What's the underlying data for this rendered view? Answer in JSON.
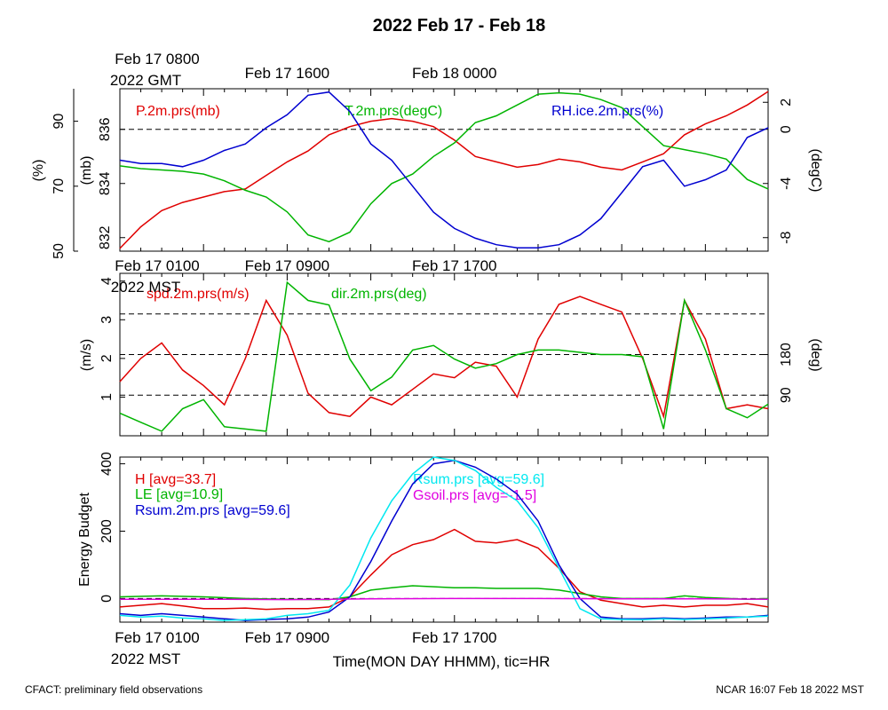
{
  "page": {
    "title": "2022 Feb 17 - Feb 18",
    "footer_left": "CFACT: preliminary field observations",
    "footer_right": "NCAR 16:07 Feb 18 2022 MST",
    "x_axis_title": "Time(MON DAY HHMM), tic=HR"
  },
  "colors": {
    "red": "#e00000",
    "green": "#00b400",
    "blue": "#0000d0",
    "cyan": "#00e8f0",
    "magenta": "#e000e0",
    "black": "#000000"
  },
  "chart_data": [
    {
      "type": "line",
      "name": "panel-state",
      "gmt_labels": [
        {
          "lines": [
            "Feb 17 0800",
            "2022 GMT"
          ],
          "hour": 0
        },
        {
          "lines": [
            "Feb 17 1600"
          ],
          "hour": 8
        },
        {
          "lines": [
            "Feb 18 0000"
          ],
          "hour": 16
        }
      ],
      "axes": {
        "rh": {
          "label": "(%)",
          "range": [
            50,
            100
          ],
          "ticks": [
            50,
            70,
            90
          ]
        },
        "p": {
          "label": "(mb)",
          "range": [
            831.5,
            837.5
          ],
          "ticks": [
            832,
            834,
            836
          ]
        },
        "t": {
          "label": "(degC)",
          "range": [
            -9,
            3
          ],
          "ticks": [
            -8,
            -4,
            0,
            2
          ]
        }
      },
      "series": [
        {
          "name": "P.2m.prs(mb)",
          "axis": "p",
          "color": "red",
          "x": [
            0,
            1,
            2,
            3,
            4,
            5,
            6,
            7,
            8,
            9,
            10,
            11,
            12,
            13,
            14,
            15,
            16,
            17,
            18,
            19,
            20,
            21,
            22,
            23,
            24,
            25,
            26,
            27,
            28,
            29,
            30,
            31
          ],
          "y": [
            831.6,
            832.4,
            833.0,
            833.3,
            833.5,
            833.7,
            833.8,
            834.3,
            834.8,
            835.2,
            835.8,
            836.1,
            836.3,
            836.4,
            836.3,
            836.1,
            835.6,
            835.0,
            834.8,
            834.6,
            834.7,
            834.9,
            834.8,
            834.6,
            834.5,
            834.8,
            835.1,
            835.8,
            836.2,
            836.5,
            836.9,
            837.4
          ]
        },
        {
          "name": "T.2m.prs(degC)",
          "axis": "t",
          "color": "green",
          "x": [
            0,
            1,
            2,
            3,
            4,
            5,
            6,
            7,
            8,
            9,
            10,
            11,
            12,
            13,
            14,
            15,
            16,
            17,
            18,
            19,
            20,
            21,
            22,
            23,
            24,
            25,
            26,
            27,
            28,
            29,
            30,
            31
          ],
          "y": [
            -2.7,
            -2.9,
            -3.0,
            -3.1,
            -3.3,
            -3.8,
            -4.5,
            -5.0,
            -6.1,
            -7.8,
            -8.3,
            -7.6,
            -5.5,
            -4.0,
            -3.3,
            -2.0,
            -1.0,
            0.5,
            1.0,
            1.8,
            2.6,
            2.7,
            2.6,
            2.2,
            1.6,
            0.2,
            -1.2,
            -1.5,
            -1.8,
            -2.2,
            -3.7,
            -4.4
          ]
        },
        {
          "name": "RH.ice.2m.prs(%)",
          "axis": "rh",
          "color": "blue",
          "x": [
            0,
            1,
            2,
            3,
            4,
            5,
            6,
            7,
            8,
            9,
            10,
            11,
            12,
            13,
            14,
            15,
            16,
            17,
            18,
            19,
            20,
            21,
            22,
            23,
            24,
            25,
            26,
            27,
            28,
            29,
            30,
            31
          ],
          "y": [
            78,
            77,
            77,
            76,
            78,
            81,
            83,
            88,
            92,
            98,
            99,
            93,
            83,
            78,
            70,
            62,
            57,
            54,
            52,
            51,
            51,
            52,
            55,
            60,
            68,
            76,
            78,
            70,
            72,
            75,
            85,
            88
          ]
        }
      ],
      "legend": [
        "P.2m.prs(mb)",
        "T.2m.prs(degC)",
        "RH.ice.2m.prs(%)"
      ],
      "reference_lines": [
        {
          "axis": "t",
          "value": 0
        }
      ]
    },
    {
      "type": "line",
      "name": "panel-wind",
      "mst_labels": [
        {
          "lines": [
            "Feb 17 0100",
            "2022 MST"
          ],
          "hour": 0
        },
        {
          "lines": [
            "Feb 17 0900"
          ],
          "hour": 8
        },
        {
          "lines": [
            "Feb 17 1700"
          ],
          "hour": 16
        }
      ],
      "axes": {
        "spd": {
          "label": "(m/s)",
          "range": [
            0,
            4.2
          ],
          "ticks": [
            1,
            2,
            3,
            4
          ]
        },
        "dir": {
          "label": "(deg)",
          "range": [
            0,
            360
          ],
          "ticks": [
            90,
            180
          ]
        }
      },
      "series": [
        {
          "name": "spd.2m.prs(m/s)",
          "axis": "spd",
          "color": "red",
          "x": [
            0,
            1,
            2,
            3,
            4,
            5,
            6,
            7,
            8,
            9,
            10,
            11,
            12,
            13,
            14,
            15,
            16,
            17,
            18,
            19,
            20,
            21,
            22,
            23,
            24,
            25,
            26,
            27,
            28,
            29,
            30,
            31
          ],
          "y": [
            1.4,
            2.0,
            2.4,
            1.7,
            1.3,
            0.8,
            2.0,
            3.5,
            2.6,
            1.1,
            0.6,
            0.5,
            1.0,
            0.8,
            1.2,
            1.6,
            1.5,
            1.9,
            1.8,
            1.0,
            2.5,
            3.4,
            3.6,
            3.4,
            3.2,
            2.0,
            0.5,
            3.5,
            2.5,
            0.7,
            0.8,
            0.7
          ]
        },
        {
          "name": "dir.2m.prs(deg)",
          "axis": "dir",
          "color": "green",
          "x": [
            0,
            1,
            2,
            3,
            4,
            5,
            6,
            7,
            8,
            9,
            10,
            11,
            12,
            13,
            14,
            15,
            16,
            17,
            18,
            19,
            20,
            21,
            22,
            23,
            24,
            25,
            26,
            27,
            28,
            29,
            30,
            31
          ],
          "y": [
            50,
            30,
            10,
            60,
            80,
            20,
            15,
            10,
            340,
            300,
            290,
            170,
            100,
            130,
            190,
            200,
            170,
            150,
            160,
            180,
            190,
            190,
            185,
            180,
            180,
            175,
            15,
            300,
            190,
            60,
            40,
            70
          ]
        }
      ],
      "legend": [
        "spd.2m.prs(m/s)",
        "dir.2m.prs(deg)"
      ],
      "reference_lines": [
        {
          "axis": "dir",
          "value": 90
        },
        {
          "axis": "dir",
          "value": 180
        },
        {
          "axis": "dir",
          "value": 270
        }
      ]
    },
    {
      "type": "line",
      "name": "panel-energy",
      "axes": {
        "e": {
          "label": "Energy Budget",
          "range": [
            -70,
            420
          ],
          "ticks": [
            0,
            200,
            400
          ]
        }
      },
      "series": [
        {
          "name": "H",
          "label": "H [avg=33.7]",
          "color": "red",
          "x": [
            0,
            1,
            2,
            3,
            4,
            5,
            6,
            7,
            8,
            9,
            10,
            11,
            12,
            13,
            14,
            15,
            16,
            17,
            18,
            19,
            20,
            21,
            22,
            23,
            24,
            25,
            26,
            27,
            28,
            29,
            30,
            31
          ],
          "y": [
            -25,
            -20,
            -15,
            -22,
            -30,
            -30,
            -28,
            -32,
            -30,
            -30,
            -25,
            5,
            70,
            130,
            160,
            175,
            205,
            170,
            165,
            175,
            150,
            90,
            20,
            -5,
            -15,
            -25,
            -20,
            -25,
            -20,
            -20,
            -15,
            -25
          ]
        },
        {
          "name": "LE",
          "label": "LE [avg=10.9]",
          "color": "green",
          "x": [
            0,
            2,
            4,
            6,
            8,
            10,
            11,
            12,
            13,
            14,
            15,
            16,
            17,
            18,
            19,
            20,
            21,
            22,
            23,
            24,
            26,
            27,
            28,
            30,
            31
          ],
          "y": [
            5,
            8,
            5,
            0,
            -2,
            -3,
            5,
            25,
            32,
            38,
            35,
            32,
            32,
            30,
            30,
            30,
            25,
            15,
            5,
            0,
            0,
            8,
            3,
            -2,
            0
          ]
        },
        {
          "name": "Rsum.2m.prs",
          "label": "Rsum.2m.prs [avg=59.6]",
          "color": "blue",
          "x": [
            0,
            1,
            2,
            3,
            4,
            5,
            6,
            7,
            8,
            9,
            10,
            11,
            12,
            13,
            14,
            15,
            16,
            17,
            18,
            19,
            20,
            21,
            22,
            23,
            24,
            25,
            26,
            27,
            28,
            29,
            30,
            31
          ],
          "y": [
            -45,
            -50,
            -45,
            -50,
            -55,
            -60,
            -65,
            -62,
            -60,
            -55,
            -40,
            5,
            110,
            230,
            340,
            400,
            410,
            390,
            355,
            310,
            230,
            100,
            0,
            -55,
            -60,
            -60,
            -58,
            -60,
            -58,
            -55,
            -55,
            -50
          ]
        },
        {
          "name": "Rsum.prs",
          "label": "Rsum.prs [avg=59.6]",
          "color": "cyan",
          "x": [
            0,
            1,
            2,
            3,
            4,
            5,
            6,
            7,
            8,
            9,
            10,
            11,
            12,
            13,
            14,
            15,
            16,
            17,
            18,
            19,
            20,
            21,
            22,
            23,
            24,
            25,
            26,
            27,
            28,
            29,
            30,
            31
          ],
          "y": [
            -50,
            -55,
            -52,
            -58,
            -60,
            -65,
            -63,
            -60,
            -50,
            -45,
            -35,
            40,
            180,
            290,
            370,
            420,
            410,
            380,
            330,
            290,
            210,
            90,
            -30,
            -60,
            -62,
            -63,
            -60,
            -62,
            -60,
            -58,
            -55,
            -52
          ]
        },
        {
          "name": "Gsoil.prs",
          "label": "Gsoil.prs [avg=-1.5]",
          "color": "magenta",
          "x": [
            0,
            4,
            8,
            12,
            16,
            20,
            24,
            28,
            31
          ],
          "y": [
            -2,
            -2,
            -3,
            -1,
            0,
            0,
            -1,
            -1,
            -2
          ]
        }
      ],
      "mst_labels": [
        {
          "lines": [
            "Feb 17 0100",
            "2022 MST"
          ],
          "hour": 0
        },
        {
          "lines": [
            "Feb 17 0900"
          ],
          "hour": 8
        },
        {
          "lines": [
            "Feb 17 1700"
          ],
          "hour": 16
        }
      ],
      "reference_lines": [
        {
          "axis": "e",
          "value": 0
        }
      ]
    }
  ]
}
